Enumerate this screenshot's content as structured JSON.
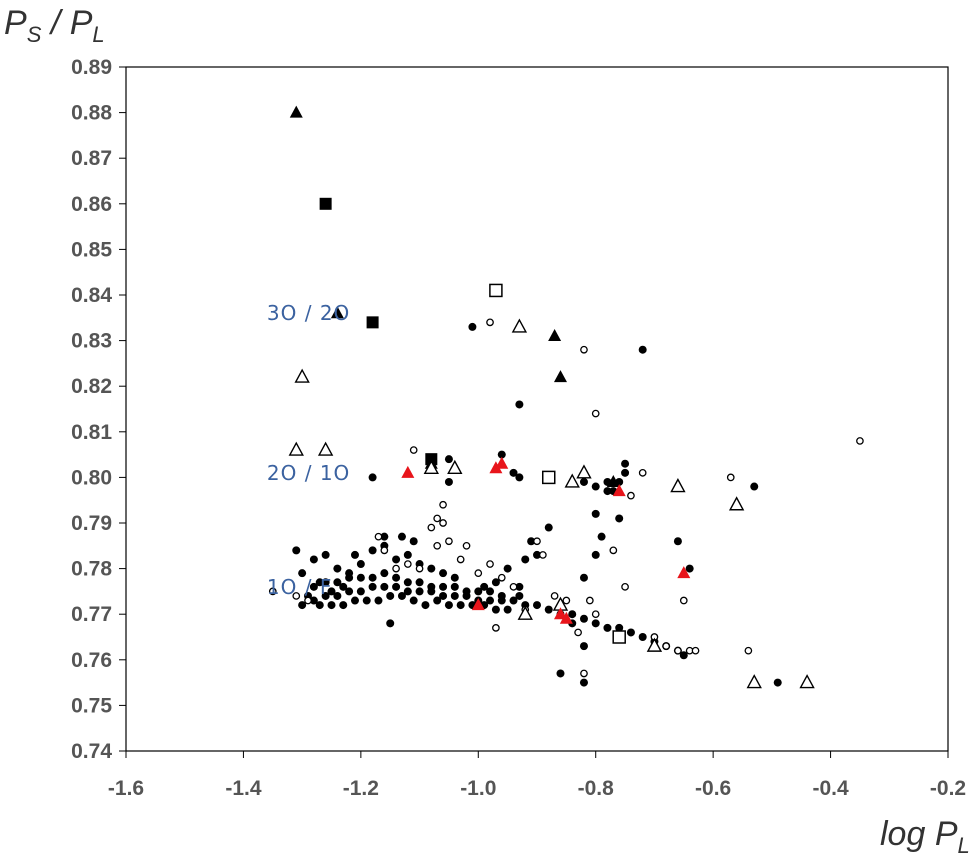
{
  "chart_data": {
    "type": "scatter",
    "title": "",
    "ylabel": {
      "main": "P",
      "sub1": "S",
      "sep": " / P",
      "sub2": "L"
    },
    "xlabel": {
      "main": "log P",
      "sub": "L"
    },
    "xlim": [
      -1.6,
      -0.2
    ],
    "ylim": [
      0.74,
      0.89
    ],
    "xticks": [
      "-1.6",
      "-1.4",
      "-1.2",
      "-1.0",
      "-0.8",
      "-0.6",
      "-0.4",
      "-0.2"
    ],
    "yticks": [
      "0.74",
      "0.75",
      "0.76",
      "0.77",
      "0.78",
      "0.79",
      "0.80",
      "0.81",
      "0.82",
      "0.83",
      "0.84",
      "0.85",
      "0.86",
      "0.87",
      "0.88",
      "0.89"
    ],
    "grid": false,
    "annotations": [
      {
        "text": "3O / 2O",
        "x": -1.36,
        "y": 0.836
      },
      {
        "text": "2O / 1O",
        "x": -1.36,
        "y": 0.801
      },
      {
        "text": "1O / F",
        "x": -1.36,
        "y": 0.776
      }
    ],
    "series": [
      {
        "marker": "filled-circle",
        "color": "#000000",
        "points": [
          [
            -1.31,
            0.784
          ],
          [
            -1.3,
            0.779
          ],
          [
            -1.28,
            0.782
          ],
          [
            -1.26,
            0.783
          ],
          [
            -1.27,
            0.777
          ],
          [
            -1.24,
            0.78
          ],
          [
            -1.22,
            0.779
          ],
          [
            -1.2,
            0.781
          ],
          [
            -1.23,
            0.776
          ],
          [
            -1.25,
            0.775
          ],
          [
            -1.29,
            0.774
          ],
          [
            -1.3,
            0.772
          ],
          [
            -1.28,
            0.773
          ],
          [
            -1.26,
            0.774
          ],
          [
            -1.24,
            0.774
          ],
          [
            -1.22,
            0.775
          ],
          [
            -1.2,
            0.775
          ],
          [
            -1.18,
            0.776
          ],
          [
            -1.16,
            0.776
          ],
          [
            -1.14,
            0.776
          ],
          [
            -1.12,
            0.775
          ],
          [
            -1.1,
            0.775
          ],
          [
            -1.08,
            0.775
          ],
          [
            -1.06,
            0.774
          ],
          [
            -1.04,
            0.774
          ],
          [
            -1.02,
            0.774
          ],
          [
            -1.0,
            0.773
          ],
          [
            -0.98,
            0.773
          ],
          [
            -0.96,
            0.773
          ],
          [
            -0.94,
            0.773
          ],
          [
            -0.92,
            0.772
          ],
          [
            -0.9,
            0.772
          ],
          [
            -0.88,
            0.771
          ],
          [
            -0.86,
            0.77
          ],
          [
            -0.84,
            0.77
          ],
          [
            -0.82,
            0.769
          ],
          [
            -0.8,
            0.768
          ],
          [
            -0.78,
            0.767
          ],
          [
            -0.76,
            0.767
          ],
          [
            -0.74,
            0.766
          ],
          [
            -0.72,
            0.765
          ],
          [
            -0.7,
            0.764
          ],
          [
            -0.68,
            0.763
          ],
          [
            -0.66,
            0.762
          ],
          [
            -0.65,
            0.761
          ],
          [
            -1.27,
            0.772
          ],
          [
            -1.25,
            0.772
          ],
          [
            -1.23,
            0.772
          ],
          [
            -1.21,
            0.773
          ],
          [
            -1.19,
            0.773
          ],
          [
            -1.17,
            0.773
          ],
          [
            -1.15,
            0.774
          ],
          [
            -1.13,
            0.774
          ],
          [
            -1.11,
            0.773
          ],
          [
            -1.09,
            0.772
          ],
          [
            -1.07,
            0.773
          ],
          [
            -1.05,
            0.772
          ],
          [
            -1.03,
            0.772
          ],
          [
            -1.01,
            0.772
          ],
          [
            -0.99,
            0.772
          ],
          [
            -0.97,
            0.771
          ],
          [
            -0.95,
            0.771
          ],
          [
            -1.28,
            0.776
          ],
          [
            -1.26,
            0.777
          ],
          [
            -1.24,
            0.777
          ],
          [
            -1.22,
            0.778
          ],
          [
            -1.2,
            0.778
          ],
          [
            -1.18,
            0.778
          ],
          [
            -1.16,
            0.779
          ],
          [
            -1.14,
            0.778
          ],
          [
            -1.12,
            0.777
          ],
          [
            -1.1,
            0.777
          ],
          [
            -1.08,
            0.776
          ],
          [
            -1.06,
            0.776
          ],
          [
            -1.04,
            0.776
          ],
          [
            -1.02,
            0.775
          ],
          [
            -1.0,
            0.775
          ],
          [
            -0.98,
            0.775
          ],
          [
            -0.96,
            0.774
          ],
          [
            -0.93,
            0.774
          ],
          [
            -1.18,
            0.784
          ],
          [
            -1.16,
            0.785
          ],
          [
            -1.14,
            0.782
          ],
          [
            -1.12,
            0.783
          ],
          [
            -1.1,
            0.781
          ],
          [
            -1.08,
            0.78
          ],
          [
            -1.06,
            0.779
          ],
          [
            -1.04,
            0.778
          ],
          [
            -1.13,
            0.787
          ],
          [
            -1.16,
            0.787
          ],
          [
            -1.11,
            0.786
          ],
          [
            -1.21,
            0.783
          ],
          [
            -1.15,
            0.768
          ],
          [
            -0.99,
            0.776
          ],
          [
            -0.97,
            0.777
          ],
          [
            -0.95,
            0.78
          ],
          [
            -0.92,
            0.782
          ],
          [
            -0.91,
            0.786
          ],
          [
            -0.88,
            0.789
          ],
          [
            -0.9,
            0.783
          ],
          [
            -0.93,
            0.776
          ],
          [
            -0.82,
            0.778
          ],
          [
            -0.8,
            0.783
          ],
          [
            -0.79,
            0.787
          ],
          [
            -0.8,
            0.792
          ],
          [
            -0.78,
            0.797
          ],
          [
            -0.8,
            0.798
          ],
          [
            -0.82,
            0.799
          ],
          [
            -0.78,
            0.799
          ],
          [
            -0.76,
            0.799
          ],
          [
            -0.75,
            0.801
          ],
          [
            -0.75,
            0.803
          ],
          [
            -0.77,
            0.797
          ],
          [
            -0.76,
            0.791
          ],
          [
            -0.66,
            0.786
          ],
          [
            -0.64,
            0.78
          ],
          [
            -0.53,
            0.798
          ],
          [
            -0.86,
            0.757
          ],
          [
            -0.82,
            0.755
          ],
          [
            -0.84,
            0.768
          ],
          [
            -0.82,
            0.763
          ],
          [
            -0.49,
            0.755
          ],
          [
            -1.01,
            0.833
          ],
          [
            -0.72,
            0.828
          ],
          [
            -0.93,
            0.816
          ],
          [
            -1.05,
            0.804
          ],
          [
            -0.96,
            0.805
          ],
          [
            -0.94,
            0.801
          ],
          [
            -0.93,
            0.8
          ],
          [
            -1.05,
            0.799
          ],
          [
            -1.18,
            0.8
          ]
        ]
      },
      {
        "marker": "open-circle",
        "color": "#000000",
        "points": [
          [
            -1.35,
            0.775
          ],
          [
            -1.31,
            0.774
          ],
          [
            -1.29,
            0.773
          ],
          [
            -1.17,
            0.787
          ],
          [
            -1.16,
            0.784
          ],
          [
            -1.14,
            0.78
          ],
          [
            -1.12,
            0.781
          ],
          [
            -1.1,
            0.78
          ],
          [
            -1.08,
            0.789
          ],
          [
            -1.06,
            0.79
          ],
          [
            -1.07,
            0.785
          ],
          [
            -1.05,
            0.786
          ],
          [
            -1.03,
            0.782
          ],
          [
            -1.02,
            0.785
          ],
          [
            -1.0,
            0.779
          ],
          [
            -0.98,
            0.781
          ],
          [
            -0.96,
            0.778
          ],
          [
            -0.94,
            0.776
          ],
          [
            -0.97,
            0.767
          ],
          [
            -0.92,
            0.771
          ],
          [
            -0.9,
            0.786
          ],
          [
            -0.89,
            0.783
          ],
          [
            -0.87,
            0.774
          ],
          [
            -0.85,
            0.773
          ],
          [
            -0.83,
            0.766
          ],
          [
            -0.82,
            0.757
          ],
          [
            -0.81,
            0.773
          ],
          [
            -0.8,
            0.77
          ],
          [
            -0.77,
            0.784
          ],
          [
            -0.75,
            0.776
          ],
          [
            -0.74,
            0.796
          ],
          [
            -0.72,
            0.801
          ],
          [
            -0.7,
            0.765
          ],
          [
            -0.68,
            0.763
          ],
          [
            -0.66,
            0.762
          ],
          [
            -0.64,
            0.762
          ],
          [
            -0.63,
            0.762
          ],
          [
            -0.65,
            0.773
          ],
          [
            -0.57,
            0.8
          ],
          [
            -0.54,
            0.762
          ],
          [
            -0.35,
            0.808
          ],
          [
            -0.98,
            0.834
          ],
          [
            -0.82,
            0.828
          ],
          [
            -0.8,
            0.814
          ],
          [
            -1.11,
            0.806
          ],
          [
            -1.06,
            0.794
          ],
          [
            -1.07,
            0.791
          ]
        ]
      },
      {
        "marker": "filled-triangle",
        "color": "#000000",
        "points": [
          [
            -1.31,
            0.88
          ],
          [
            -1.24,
            0.836
          ],
          [
            -0.87,
            0.831
          ],
          [
            -0.86,
            0.822
          ],
          [
            -1.08,
            0.803
          ],
          [
            -0.77,
            0.799
          ]
        ]
      },
      {
        "marker": "filled-square",
        "color": "#000000",
        "points": [
          [
            -1.26,
            0.86
          ],
          [
            -1.18,
            0.834
          ],
          [
            -1.08,
            0.804
          ]
        ]
      },
      {
        "marker": "open-triangle",
        "color": "#000000",
        "points": [
          [
            -0.93,
            0.833
          ],
          [
            -1.3,
            0.822
          ],
          [
            -1.31,
            0.806
          ],
          [
            -1.26,
            0.806
          ],
          [
            -1.08,
            0.802
          ],
          [
            -1.04,
            0.802
          ],
          [
            -0.82,
            0.801
          ],
          [
            -0.84,
            0.799
          ],
          [
            -0.66,
            0.798
          ],
          [
            -0.56,
            0.794
          ],
          [
            -0.53,
            0.755
          ],
          [
            -0.44,
            0.755
          ],
          [
            -0.7,
            0.763
          ],
          [
            -0.92,
            0.77
          ],
          [
            -0.86,
            0.772
          ]
        ]
      },
      {
        "marker": "open-square",
        "color": "#000000",
        "points": [
          [
            -0.97,
            0.841
          ],
          [
            -0.88,
            0.8
          ],
          [
            -0.76,
            0.765
          ]
        ]
      },
      {
        "marker": "filled-triangle",
        "color": "#e8151b",
        "points": [
          [
            -1.12,
            0.801
          ],
          [
            -0.97,
            0.802
          ],
          [
            -0.96,
            0.803
          ],
          [
            -0.76,
            0.797
          ],
          [
            -0.65,
            0.779
          ],
          [
            -1.0,
            0.772
          ],
          [
            -0.86,
            0.77
          ],
          [
            -0.85,
            0.769
          ]
        ]
      }
    ]
  }
}
